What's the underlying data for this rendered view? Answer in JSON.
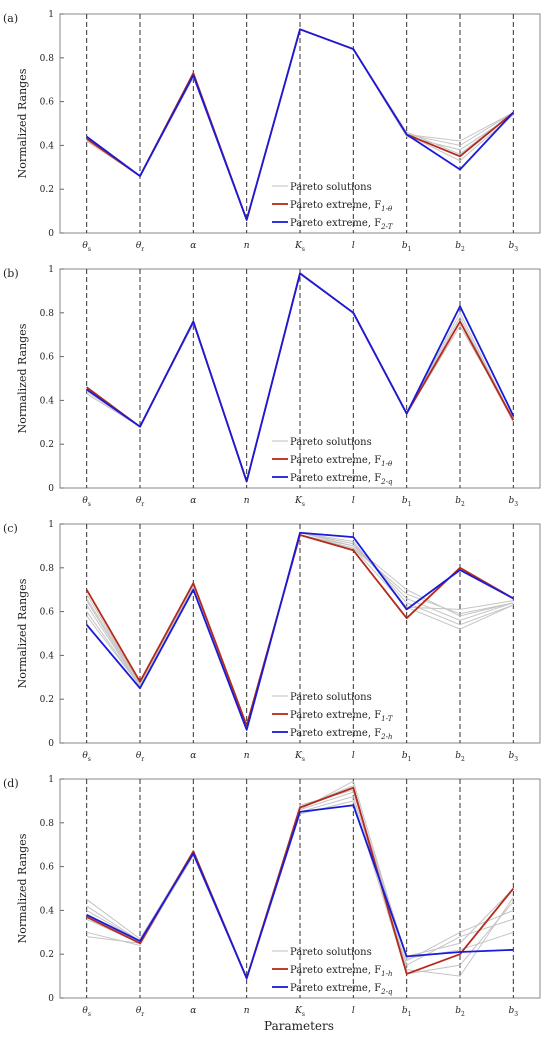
{
  "figure": {
    "xlabel": "Parameters",
    "ylabel": "Normalized Ranges"
  },
  "chart_data": [
    {
      "type": "line",
      "panel_label": "(a)",
      "categories": [
        "θs",
        "θr",
        "α",
        "n",
        "Ks",
        "l",
        "b1",
        "b2",
        "b3"
      ],
      "tick_labels": [
        {
          "main": "θ",
          "sub": "s"
        },
        {
          "main": "θ",
          "sub": "r"
        },
        {
          "main": "α",
          "sub": ""
        },
        {
          "main": "n",
          "sub": ""
        },
        {
          "main": "K",
          "sub": "s"
        },
        {
          "main": "l",
          "sub": ""
        },
        {
          "main": "b",
          "sub": "1"
        },
        {
          "main": "b",
          "sub": "2"
        },
        {
          "main": "b",
          "sub": "3"
        }
      ],
      "ylim": [
        0,
        1
      ],
      "yticks": [
        "0",
        "0.2",
        "0.4",
        "0.6",
        "0.8",
        "1"
      ],
      "vertical_grid": true,
      "legend_position": "lower-center",
      "pareto_solutions": [
        [
          0.43,
          0.26,
          0.72,
          0.06,
          0.93,
          0.84,
          0.45,
          0.42,
          0.55
        ],
        [
          0.42,
          0.26,
          0.72,
          0.06,
          0.93,
          0.84,
          0.45,
          0.4,
          0.55
        ],
        [
          0.43,
          0.26,
          0.73,
          0.06,
          0.93,
          0.84,
          0.44,
          0.38,
          0.54
        ],
        [
          0.44,
          0.26,
          0.71,
          0.06,
          0.93,
          0.84,
          0.46,
          0.36,
          0.55
        ],
        [
          0.43,
          0.26,
          0.72,
          0.06,
          0.93,
          0.84,
          0.45,
          0.33,
          0.54
        ]
      ],
      "series": [
        {
          "legend_main": "Pareto solutions",
          "legend_sub": "",
          "color": "#bfbfbf",
          "values": [
            0.43,
            0.26,
            0.72,
            0.06,
            0.93,
            0.84,
            0.45,
            0.42,
            0.55
          ]
        },
        {
          "legend_main": "Pareto extreme, F",
          "legend_sub": "1-θ",
          "color": "#b52a1a",
          "values": [
            0.43,
            0.26,
            0.73,
            0.06,
            0.93,
            0.84,
            0.45,
            0.35,
            0.55
          ]
        },
        {
          "legend_main": "Pareto extreme, F",
          "legend_sub": "2-T",
          "color": "#1a1adb",
          "values": [
            0.44,
            0.26,
            0.72,
            0.06,
            0.93,
            0.84,
            0.45,
            0.29,
            0.55
          ]
        }
      ]
    },
    {
      "type": "line",
      "panel_label": "(b)",
      "categories": [
        "θs",
        "θr",
        "α",
        "n",
        "Ks",
        "l",
        "b1",
        "b2",
        "b3"
      ],
      "tick_labels": [
        {
          "main": "θ",
          "sub": "s"
        },
        {
          "main": "θ",
          "sub": "r"
        },
        {
          "main": "α",
          "sub": ""
        },
        {
          "main": "n",
          "sub": ""
        },
        {
          "main": "K",
          "sub": "s"
        },
        {
          "main": "l",
          "sub": ""
        },
        {
          "main": "b",
          "sub": "1"
        },
        {
          "main": "b",
          "sub": "2"
        },
        {
          "main": "b",
          "sub": "3"
        }
      ],
      "ylim": [
        0,
        1
      ],
      "yticks": [
        "0",
        "0.2",
        "0.4",
        "0.6",
        "0.8",
        "1"
      ],
      "vertical_grid": true,
      "legend_position": "lower-center",
      "pareto_solutions": [
        [
          0.45,
          0.28,
          0.76,
          0.03,
          0.98,
          0.8,
          0.34,
          0.8,
          0.31
        ],
        [
          0.44,
          0.28,
          0.76,
          0.03,
          0.98,
          0.8,
          0.34,
          0.76,
          0.3
        ],
        [
          0.46,
          0.28,
          0.75,
          0.03,
          0.98,
          0.8,
          0.34,
          0.74,
          0.32
        ],
        [
          0.43,
          0.28,
          0.76,
          0.03,
          0.98,
          0.8,
          0.34,
          0.78,
          0.31
        ]
      ],
      "series": [
        {
          "legend_main": "Pareto solutions",
          "legend_sub": "",
          "color": "#bfbfbf",
          "values": [
            0.45,
            0.28,
            0.76,
            0.03,
            0.98,
            0.8,
            0.34,
            0.8,
            0.31
          ]
        },
        {
          "legend_main": "Pareto extreme, F",
          "legend_sub": "1-θ",
          "color": "#b52a1a",
          "values": [
            0.46,
            0.28,
            0.76,
            0.03,
            0.98,
            0.8,
            0.34,
            0.76,
            0.31
          ]
        },
        {
          "legend_main": "Pareto extreme, F",
          "legend_sub": "2-q",
          "color": "#1a1adb",
          "values": [
            0.45,
            0.28,
            0.76,
            0.03,
            0.98,
            0.8,
            0.34,
            0.83,
            0.33
          ]
        }
      ]
    },
    {
      "type": "line",
      "panel_label": "(c)",
      "categories": [
        "θs",
        "θr",
        "α",
        "n",
        "Ks",
        "l",
        "b1",
        "b2",
        "b3"
      ],
      "tick_labels": [
        {
          "main": "θ",
          "sub": "s"
        },
        {
          "main": "θ",
          "sub": "r"
        },
        {
          "main": "α",
          "sub": ""
        },
        {
          "main": "n",
          "sub": ""
        },
        {
          "main": "K",
          "sub": "s"
        },
        {
          "main": "l",
          "sub": ""
        },
        {
          "main": "b",
          "sub": "1"
        },
        {
          "main": "b",
          "sub": "2"
        },
        {
          "main": "b",
          "sub": "3"
        }
      ],
      "ylim": [
        0,
        1
      ],
      "yticks": [
        "0",
        "0.2",
        "0.4",
        "0.6",
        "0.8",
        "1"
      ],
      "vertical_grid": true,
      "legend_position": "lower-center",
      "pareto_solutions": [
        [
          0.66,
          0.27,
          0.72,
          0.07,
          0.95,
          0.89,
          0.68,
          0.59,
          0.64
        ],
        [
          0.63,
          0.26,
          0.72,
          0.07,
          0.95,
          0.9,
          0.66,
          0.56,
          0.64
        ],
        [
          0.6,
          0.26,
          0.71,
          0.07,
          0.96,
          0.91,
          0.64,
          0.54,
          0.63
        ],
        [
          0.58,
          0.26,
          0.71,
          0.07,
          0.96,
          0.92,
          0.62,
          0.52,
          0.63
        ],
        [
          0.68,
          0.27,
          0.72,
          0.07,
          0.95,
          0.89,
          0.62,
          0.61,
          0.65
        ],
        [
          0.65,
          0.26,
          0.72,
          0.07,
          0.96,
          0.9,
          0.7,
          0.58,
          0.64
        ]
      ],
      "series": [
        {
          "legend_main": "Pareto solutions",
          "legend_sub": "",
          "color": "#bfbfbf",
          "values": [
            0.66,
            0.27,
            0.72,
            0.07,
            0.95,
            0.89,
            0.68,
            0.59,
            0.64
          ]
        },
        {
          "legend_main": "Pareto extreme, F",
          "legend_sub": "1-T",
          "color": "#b52a1a",
          "values": [
            0.7,
            0.28,
            0.73,
            0.08,
            0.95,
            0.88,
            0.57,
            0.8,
            0.66
          ]
        },
        {
          "legend_main": "Pareto extreme, F",
          "legend_sub": "2-h",
          "color": "#1a1adb",
          "values": [
            0.54,
            0.25,
            0.7,
            0.06,
            0.96,
            0.94,
            0.61,
            0.79,
            0.66
          ]
        }
      ]
    },
    {
      "type": "line",
      "panel_label": "(d)",
      "categories": [
        "θs",
        "θr",
        "α",
        "n",
        "Ks",
        "l",
        "b1",
        "b2",
        "b3"
      ],
      "tick_labels": [
        {
          "main": "θ",
          "sub": "s"
        },
        {
          "main": "θ",
          "sub": "r"
        },
        {
          "main": "α",
          "sub": ""
        },
        {
          "main": "n",
          "sub": ""
        },
        {
          "main": "K",
          "sub": "s"
        },
        {
          "main": "l",
          "sub": ""
        },
        {
          "main": "b",
          "sub": "1"
        },
        {
          "main": "b",
          "sub": "2"
        },
        {
          "main": "b",
          "sub": "3"
        }
      ],
      "ylim": [
        0,
        1
      ],
      "yticks": [
        "0",
        "0.2",
        "0.4",
        "0.6",
        "0.8",
        "1"
      ],
      "vertical_grid": true,
      "legend_position": "lower-center",
      "pareto_solutions": [
        [
          0.45,
          0.27,
          0.67,
          0.09,
          0.86,
          0.99,
          0.17,
          0.3,
          0.4
        ],
        [
          0.42,
          0.26,
          0.66,
          0.09,
          0.87,
          0.97,
          0.13,
          0.1,
          0.46
        ],
        [
          0.36,
          0.25,
          0.65,
          0.09,
          0.88,
          0.95,
          0.19,
          0.25,
          0.5
        ],
        [
          0.3,
          0.24,
          0.66,
          0.09,
          0.85,
          0.92,
          0.15,
          0.28,
          0.36
        ],
        [
          0.28,
          0.25,
          0.65,
          0.09,
          0.84,
          0.9,
          0.11,
          0.15,
          0.44
        ],
        [
          0.4,
          0.26,
          0.67,
          0.09,
          0.86,
          0.94,
          0.18,
          0.22,
          0.3
        ]
      ],
      "series": [
        {
          "legend_main": "Pareto solutions",
          "legend_sub": "",
          "color": "#bfbfbf",
          "values": [
            0.45,
            0.27,
            0.67,
            0.09,
            0.86,
            0.99,
            0.17,
            0.3,
            0.4
          ]
        },
        {
          "legend_main": "Pareto extreme, F",
          "legend_sub": "1-h",
          "color": "#b52a1a",
          "values": [
            0.37,
            0.25,
            0.67,
            0.09,
            0.87,
            0.96,
            0.11,
            0.2,
            0.5
          ]
        },
        {
          "legend_main": "Pareto extreme, F",
          "legend_sub": "2-q",
          "color": "#1a1adb",
          "values": [
            0.38,
            0.26,
            0.66,
            0.09,
            0.85,
            0.88,
            0.19,
            0.21,
            0.22
          ]
        }
      ]
    }
  ]
}
